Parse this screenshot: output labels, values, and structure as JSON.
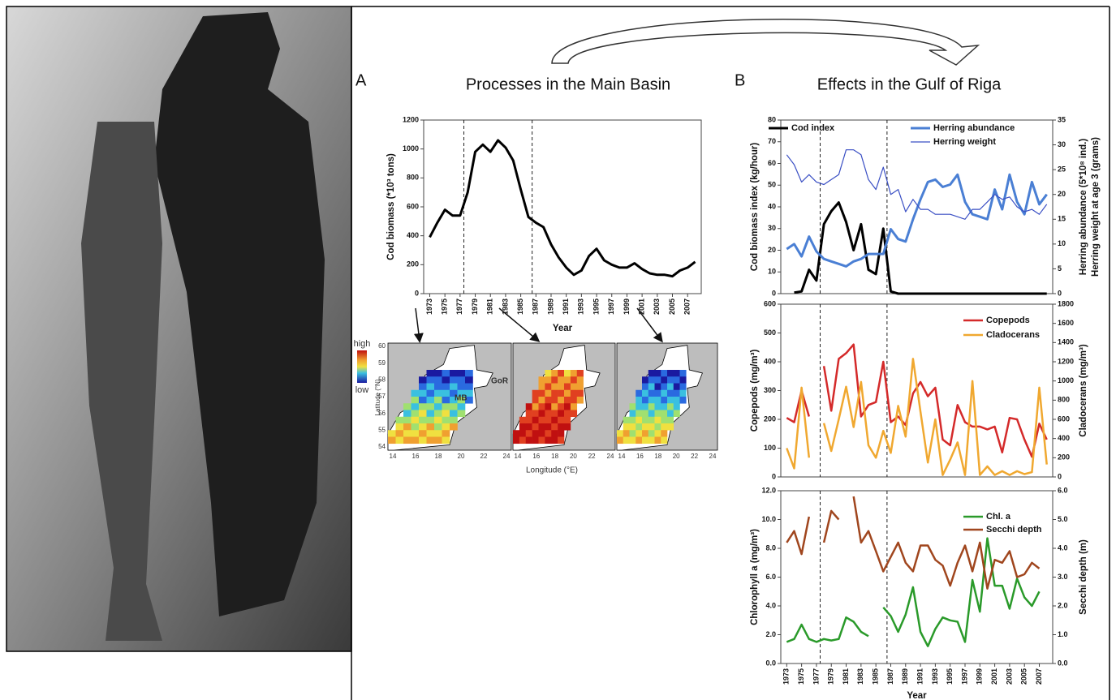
{
  "panel_a": {
    "letter": "A",
    "title": "Processes in the Main Basin"
  },
  "panel_b": {
    "letter": "B",
    "title": "Effects in the Gulf of Riga"
  },
  "vlines": [
    1977.5,
    1986.5
  ],
  "map": {
    "high": "high",
    "low": "low",
    "mb": "MB",
    "gor": "GoR",
    "xlabel": "Longitude (°E)",
    "ylabel": "Latitude (°N)",
    "lat_ticks": [
      54,
      55,
      56,
      57,
      58,
      59,
      60
    ],
    "lon_ticks": [
      14,
      16,
      18,
      20,
      22,
      24
    ]
  },
  "chart_data": [
    {
      "type": "line",
      "ylabel": "Cod biomass (*10³ tons)",
      "xlabel": "Year",
      "x": [
        1973,
        1974,
        1975,
        1976,
        1977,
        1978,
        1979,
        1980,
        1981,
        1982,
        1983,
        1984,
        1985,
        1986,
        1987,
        1988,
        1989,
        1990,
        1991,
        1992,
        1993,
        1994,
        1995,
        1996,
        1997,
        1998,
        1999,
        2000,
        2001,
        2002,
        2003,
        2004,
        2005,
        2006,
        2007,
        2008
      ],
      "xlim": [
        1972.2,
        2008.8
      ],
      "xticks": [
        1973,
        1975,
        1977,
        1979,
        1981,
        1983,
        1985,
        1987,
        1989,
        1991,
        1993,
        1995,
        1997,
        1999,
        2001,
        2003,
        2005,
        2007
      ],
      "ylim": [
        0,
        1200
      ],
      "yticks": [
        0,
        200,
        400,
        600,
        800,
        1000,
        1200
      ],
      "series": [
        {
          "name": null,
          "color": "#000000",
          "width": 3,
          "values": [
            390,
            490,
            580,
            540,
            540,
            700,
            980,
            1030,
            980,
            1060,
            1010,
            920,
            720,
            530,
            490,
            460,
            340,
            250,
            180,
            130,
            160,
            260,
            310,
            230,
            200,
            180,
            180,
            210,
            170,
            140,
            130,
            130,
            120,
            160,
            180,
            220
          ]
        }
      ]
    },
    {
      "type": "line",
      "ylabel": "Cod biomass index (kg/hour)",
      "y2label": [
        "Herring abundance (5*10⁸ ind.)",
        "Herring weight at age 3 (grams)"
      ],
      "x": [
        1973,
        1974,
        1975,
        1976,
        1977,
        1978,
        1979,
        1980,
        1981,
        1982,
        1983,
        1984,
        1985,
        1986,
        1987,
        1988,
        1989,
        1990,
        1991,
        1992,
        1993,
        1994,
        1995,
        1996,
        1997,
        1998,
        1999,
        2000,
        2001,
        2002,
        2003,
        2004,
        2005,
        2006,
        2007,
        2008
      ],
      "xlim": [
        1972.2,
        2008.8
      ],
      "ylim": [
        0,
        80
      ],
      "yticks": [
        0,
        10,
        20,
        30,
        40,
        50,
        60,
        70,
        80
      ],
      "y2lim": [
        0,
        35
      ],
      "y2ticks": [
        0,
        5,
        10,
        15,
        20,
        25,
        30,
        35
      ],
      "series": [
        {
          "name": "Cod index",
          "color": "#000000",
          "width": 3,
          "values": [
            null,
            0.5,
            1,
            11,
            6,
            32,
            38,
            42,
            33,
            20,
            32,
            11,
            9,
            30,
            1,
            0,
            0,
            0,
            0,
            0,
            0,
            0,
            0,
            0,
            0,
            0,
            0,
            0,
            0,
            0,
            0,
            0,
            0,
            0,
            0,
            0
          ]
        },
        {
          "name": "Herring abundance",
          "color": "#4a7fd4",
          "width": 3,
          "axis": "y2",
          "values": [
            9,
            10,
            7.5,
            11.5,
            8.5,
            7,
            6.5,
            6,
            5.5,
            6.5,
            7,
            8,
            8,
            8,
            13,
            11,
            10.5,
            15,
            19,
            22.5,
            23,
            21.5,
            22,
            24,
            18.5,
            16,
            15.5,
            15,
            21,
            17,
            24,
            18.5,
            16,
            22.5,
            18,
            20
          ]
        },
        {
          "name": "Herring weight",
          "color": "#3a4fc4",
          "width": 1.2,
          "axis": "y2",
          "values": [
            28,
            26,
            22.5,
            24,
            22.5,
            22,
            23,
            24,
            29,
            29,
            28,
            23,
            21,
            25.5,
            20,
            21,
            16.5,
            19,
            17,
            17,
            16,
            16,
            16,
            15.5,
            15,
            17,
            17,
            18.5,
            20,
            19,
            19.5,
            17.5,
            16.5,
            17,
            16,
            18
          ]
        }
      ]
    },
    {
      "type": "line",
      "ylabel": "Copepods (mg/m³)",
      "y2label": [
        "Cladocerans (mg/m³)"
      ],
      "x": [
        1973,
        1974,
        1975,
        1976,
        1977,
        1978,
        1979,
        1980,
        1981,
        1982,
        1983,
        1984,
        1985,
        1986,
        1987,
        1988,
        1989,
        1990,
        1991,
        1992,
        1993,
        1994,
        1995,
        1996,
        1997,
        1998,
        1999,
        2000,
        2001,
        2002,
        2003,
        2004,
        2005,
        2006,
        2007,
        2008
      ],
      "xlim": [
        1972.2,
        2008.8
      ],
      "ylim": [
        0,
        600
      ],
      "yticks": [
        0,
        100,
        200,
        300,
        400,
        500,
        600
      ],
      "y2lim": [
        0,
        1800
      ],
      "y2ticks": [
        0,
        200,
        400,
        600,
        800,
        1000,
        1200,
        1400,
        1600,
        1800
      ],
      "series": [
        {
          "name": "Copepods",
          "color": "#d42a2a",
          "width": 2.5,
          "values": [
            205,
            190,
            300,
            210,
            null,
            385,
            230,
            410,
            430,
            460,
            210,
            250,
            260,
            400,
            190,
            210,
            180,
            290,
            330,
            280,
            310,
            130,
            110,
            250,
            190,
            175,
            175,
            165,
            175,
            85,
            205,
            200,
            130,
            70,
            185,
            130
          ]
        },
        {
          "name": "Cladocerans",
          "color": "#f0a830",
          "width": 2.5,
          "axis": "y2",
          "values": [
            300,
            90,
            930,
            200,
            null,
            560,
            270,
            600,
            940,
            520,
            990,
            330,
            200,
            480,
            250,
            740,
            420,
            1230,
            680,
            150,
            600,
            20,
            180,
            360,
            20,
            1000,
            20,
            110,
            20,
            60,
            20,
            60,
            30,
            50,
            930,
            130
          ]
        }
      ]
    },
    {
      "type": "line",
      "ylabel": "Chlorophyll a (mg/m³)",
      "y2label": [
        "Secchi depth (m)"
      ],
      "xlabel": "Year",
      "x": [
        1973,
        1974,
        1975,
        1976,
        1977,
        1978,
        1979,
        1980,
        1981,
        1982,
        1983,
        1984,
        1985,
        1986,
        1987,
        1988,
        1989,
        1990,
        1991,
        1992,
        1993,
        1994,
        1995,
        1996,
        1997,
        1998,
        1999,
        2000,
        2001,
        2002,
        2003,
        2004,
        2005,
        2006,
        2007,
        2008
      ],
      "xlim": [
        1972.2,
        2008.8
      ],
      "xticks": [
        1973,
        1975,
        1977,
        1979,
        1981,
        1983,
        1985,
        1987,
        1989,
        1991,
        1993,
        1995,
        1997,
        1999,
        2001,
        2003,
        2005,
        2007
      ],
      "ylim": [
        0,
        12
      ],
      "yticks": [
        {
          "value": 0,
          "label": "0.0"
        },
        {
          "value": 2,
          "label": "2.0"
        },
        {
          "value": 4,
          "label": "4.0"
        },
        {
          "value": 6,
          "label": "6.0"
        },
        {
          "value": 8,
          "label": "8.0"
        },
        {
          "value": 10,
          "label": "10.0"
        },
        {
          "value": 12,
          "label": "12.0"
        }
      ],
      "y2lim": [
        0,
        6
      ],
      "y2ticks": [
        {
          "value": 0,
          "label": "0.0"
        },
        {
          "value": 1,
          "label": "1.0"
        },
        {
          "value": 2,
          "label": "2.0"
        },
        {
          "value": 3,
          "label": "3.0"
        },
        {
          "value": 4,
          "label": "4.0"
        },
        {
          "value": 5,
          "label": "5.0"
        },
        {
          "value": 6,
          "label": "6.0"
        }
      ],
      "series": [
        {
          "name": "Chl. a",
          "color": "#2a9a2a",
          "width": 2.5,
          "values": [
            1.5,
            1.7,
            2.7,
            1.7,
            1.5,
            1.7,
            1.6,
            1.7,
            3.2,
            2.9,
            2.2,
            1.9,
            null,
            3.9,
            3.3,
            2.2,
            3.4,
            5.3,
            2.2,
            1.2,
            2.4,
            3.2,
            3.0,
            2.9,
            1.5,
            5.8,
            3.6,
            8.7,
            5.4,
            5.4,
            3.8,
            5.9,
            4.6,
            4.0,
            5.0,
            null
          ]
        },
        {
          "name": "Secchi depth",
          "color": "#a0461e",
          "width": 2.5,
          "axis": "y2",
          "values": [
            4.2,
            4.6,
            3.8,
            5.1,
            null,
            4.2,
            5.3,
            5.0,
            null,
            5.8,
            4.2,
            4.6,
            3.9,
            3.2,
            3.7,
            4.2,
            3.5,
            3.2,
            4.1,
            4.1,
            3.6,
            3.4,
            2.7,
            3.5,
            4.1,
            3.2,
            4.2,
            2.6,
            3.6,
            3.5,
            3.9,
            3.0,
            3.1,
            3.5,
            3.3,
            null
          ]
        }
      ]
    }
  ]
}
